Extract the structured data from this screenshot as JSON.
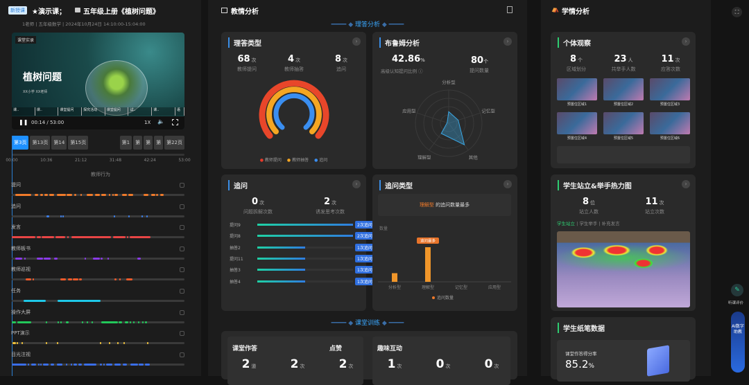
{
  "header": {
    "badge": "新授课",
    "course_type": "★演示课；",
    "title": "五年级上册《植树问题》",
    "teacher": "1老师",
    "subject": "五年级数学",
    "datetime": "2024年10月24日 14:10:00-15:04:00"
  },
  "video": {
    "tag": "课堂实录",
    "slide_title": "植树问题",
    "slide_sub": "XX小学 XX老师",
    "chapters": [
      "课..",
      "课..",
      "课堂提问",
      "探究活动",
      "课堂提问",
      "试..",
      "课..",
      "语"
    ],
    "time": "00:14 / 53:00",
    "speed": "1X",
    "progress": 0.004
  },
  "pages": [
    "第3页",
    "第13页",
    "第14",
    "第15页",
    "第1",
    "第",
    "第",
    "第",
    "第22页"
  ],
  "axis_ticks": [
    "00:00",
    "10:36",
    "21:12",
    "31:48",
    "42:24",
    "53:00"
  ],
  "behavior_title": "教师行为",
  "behaviors": [
    {
      "label": "提问",
      "color": "#f07a2a",
      "segments": [
        [
          1,
          6
        ],
        [
          7,
          8
        ],
        [
          8.8,
          9.5
        ],
        [
          10,
          11
        ],
        [
          11.5,
          13
        ],
        [
          13.8,
          16.5
        ],
        [
          16.8,
          18.5
        ],
        [
          19.2,
          19.8
        ],
        [
          21,
          21.5
        ],
        [
          23,
          25
        ],
        [
          25.5,
          27
        ],
        [
          27.5,
          29
        ],
        [
          29.7,
          30
        ],
        [
          30.8,
          31
        ],
        [
          31.5,
          32.5
        ],
        [
          33.8,
          35.3
        ],
        [
          35.8,
          37.2
        ],
        [
          40.5,
          42
        ],
        [
          42.8,
          44
        ],
        [
          44.3,
          45
        ],
        [
          45.5,
          46.7
        ]
      ]
    },
    {
      "label": "追问",
      "color": "#3a7ee8",
      "segments": [
        [
          10.7,
          11.4
        ],
        [
          14.9,
          15.3
        ],
        [
          15.5,
          15.9
        ],
        [
          31.3,
          31.6
        ],
        [
          35.8,
          36.1
        ],
        [
          39.9,
          40.3
        ],
        [
          41.3,
          41.7
        ]
      ]
    },
    {
      "label": "发言",
      "color": "#e84545",
      "segments": [
        [
          0,
          7.2
        ],
        [
          7.6,
          8.9
        ],
        [
          9.2,
          13
        ],
        [
          13.5,
          16.4
        ],
        [
          17,
          17.4
        ],
        [
          18.2,
          30.5
        ],
        [
          31,
          35
        ],
        [
          35.3,
          35.6
        ],
        [
          36.2,
          42.6
        ]
      ]
    },
    {
      "label": "教师板书",
      "color": "#8a3ae8",
      "segments": [
        [
          1,
          3.3
        ],
        [
          3.8,
          4.3
        ],
        [
          7.6,
          9.5
        ],
        [
          9.8,
          12
        ],
        [
          13,
          14
        ],
        [
          22.3,
          22.6
        ],
        [
          25,
          27
        ],
        [
          27.2,
          27.8
        ],
        [
          29.3,
          29.6
        ],
        [
          38.6,
          39.5
        ]
      ]
    },
    {
      "label": "教师巡视",
      "color": "#f05a2a",
      "segments": [
        [
          4.3,
          6
        ],
        [
          6.3,
          6.8
        ],
        [
          15,
          16.7
        ],
        [
          17.3,
          18.5
        ],
        [
          18.8,
          20.5
        ],
        [
          20.7,
          21.4
        ],
        [
          31.4,
          32.1
        ],
        [
          33,
          33.4
        ],
        [
          35.2,
          37
        ]
      ]
    },
    {
      "label": "任务",
      "color": "#1ec8e8",
      "segments": [
        [
          3.7,
          10.4
        ],
        [
          14,
          27.2
        ]
      ]
    },
    {
      "label": "操作大屏",
      "color": "#22c85a",
      "segments": [
        [
          0,
          1.3
        ],
        [
          1.8,
          6
        ],
        [
          10.4,
          10.8
        ],
        [
          14,
          14.4
        ],
        [
          14.8,
          15.3
        ],
        [
          16.5,
          17.5
        ],
        [
          21.5,
          21.9
        ],
        [
          22.9,
          23.3
        ],
        [
          24.5,
          24.9
        ],
        [
          27.4,
          32.5
        ],
        [
          32.8,
          33.8
        ],
        [
          34.8,
          35.8
        ],
        [
          36.2,
          36.6
        ],
        [
          37.3,
          37.7
        ],
        [
          38.8,
          39.2
        ],
        [
          40,
          40.4
        ],
        [
          40.9,
          41.5
        ]
      ]
    },
    {
      "label": "PPT演示",
      "color": "#f0c23a",
      "segments": [
        [
          0.2,
          1.2
        ],
        [
          1.5,
          2
        ],
        [
          3,
          3.3
        ],
        [
          10.4,
          10.7
        ],
        [
          13.8,
          14.1
        ],
        [
          27.1,
          27.4
        ],
        [
          29.7,
          30.3
        ],
        [
          32.3,
          32.6
        ],
        [
          34.3,
          34.6
        ],
        [
          41.4,
          41.7
        ]
      ]
    },
    {
      "label": "目光注视",
      "color": "#3a6ee8",
      "segments": [
        [
          0,
          4.4
        ],
        [
          5,
          5.4
        ],
        [
          5.9,
          7.5
        ],
        [
          8,
          8.4
        ],
        [
          8.7,
          9
        ],
        [
          9.6,
          11.2
        ],
        [
          11.9,
          13
        ],
        [
          13.8,
          15.6
        ],
        [
          16.6,
          16.9
        ],
        [
          18,
          18.4
        ],
        [
          18.9,
          20.1
        ],
        [
          20.5,
          21.4
        ],
        [
          22.2,
          26
        ],
        [
          27,
          27.6
        ],
        [
          28,
          28.6
        ],
        [
          29,
          30.8
        ],
        [
          31.4,
          33.4
        ],
        [
          34,
          35.3
        ],
        [
          36.4,
          38.7
        ],
        [
          39,
          40.5
        ],
        [
          40.8,
          42.3
        ]
      ]
    }
  ],
  "mid": {
    "title": "教情分析",
    "section1": "理答分析",
    "section2": "课堂训练",
    "qa": {
      "title": "理答类型",
      "stats": [
        {
          "n": "68",
          "u": "次",
          "l": "教师提问"
        },
        {
          "n": "4",
          "u": "次",
          "l": "教师抽答"
        },
        {
          "n": "8",
          "u": "次",
          "l": "追问"
        }
      ],
      "legend": [
        {
          "name": "教师提问",
          "color": "#e83a2a"
        },
        {
          "name": "教师抽答",
          "color": "#f5a623"
        },
        {
          "name": "追问",
          "color": "#3a8ef0"
        }
      ]
    },
    "bloom": {
      "title": "布鲁姆分析",
      "ratio": "42.86",
      "ratio_unit": "%",
      "ratio_label": "高级认知提问比例 ⓘ",
      "count": "80",
      "count_unit": "个",
      "count_label": "提问数量",
      "axes": [
        "分析型",
        "记忆型",
        "其他",
        "理解型",
        "应用型"
      ],
      "values": [
        0.35,
        0.3,
        0.8,
        0.38,
        0.05
      ]
    },
    "follow": {
      "title": "追问",
      "stats": [
        {
          "n": "0",
          "u": "次",
          "l": "问题拆解次数"
        },
        {
          "n": "2",
          "u": "次",
          "l": "诱发思考次数"
        }
      ],
      "bars": [
        {
          "l": "提问9",
          "v": 2,
          "t": "2次追问"
        },
        {
          "l": "提问8",
          "v": 2,
          "t": "2次追问"
        },
        {
          "l": "抽答2",
          "v": 1,
          "t": "1次追问"
        },
        {
          "l": "提问11",
          "v": 1,
          "t": "1次追问"
        },
        {
          "l": "抽答3",
          "v": 1,
          "t": "1次追问"
        },
        {
          "l": "抽答4",
          "v": 1,
          "t": "1次追问"
        }
      ]
    },
    "ftype": {
      "title": "追问类型",
      "hl": "理解型",
      "hl_rest": " 的追问数量最多",
      "ylabel": "数量",
      "tip": "追问最多",
      "legend": "追问数量"
    },
    "train": {
      "hw_title": "课堂作答",
      "like_title": "点赞",
      "fun_title": "趣味互动",
      "stats": [
        {
          "n": "2",
          "u": "道"
        },
        {
          "n": "2",
          "u": "次"
        },
        {
          "n": "2",
          "u": "次"
        },
        {
          "n": "1",
          "u": "次"
        },
        {
          "n": "0",
          "u": "次"
        },
        {
          "n": "0",
          "u": "次"
        }
      ]
    }
  },
  "chart_data": {
    "type": "bar",
    "categories": [
      "分析型",
      "理解型",
      "记忆型",
      "应用型"
    ],
    "values": [
      1,
      4,
      0,
      0
    ],
    "ylabel": "数量",
    "series_name": "追问数量"
  },
  "right": {
    "title": "学情分析",
    "obs": {
      "title": "个体观察",
      "stats": [
        {
          "n": "8",
          "u": "个",
          "l": "区域划分"
        },
        {
          "n": "23",
          "u": "人",
          "l": "共举手人数"
        },
        {
          "n": "11",
          "u": "次",
          "l": "应答次数"
        }
      ],
      "areas": [
        "预置位区域1",
        "预置位区域2",
        "预置位区域3",
        "预置位区域4",
        "预置位区域5",
        "预置位区域6"
      ]
    },
    "heat": {
      "title": "学生站立&举手热力图",
      "stats": [
        {
          "n": "8",
          "u": "位",
          "l": "站立人数"
        },
        {
          "n": "11",
          "u": "次",
          "l": "站立次数"
        }
      ],
      "tabs": [
        "学生站立",
        "学生举手",
        "补充发言"
      ]
    },
    "pen": {
      "title": "学生纸笔数据",
      "label": "课堂作答得分率",
      "value": "85.2",
      "unit": "%"
    }
  },
  "side": {
    "eval": "听课评价",
    "ai": "AI数字助教"
  }
}
